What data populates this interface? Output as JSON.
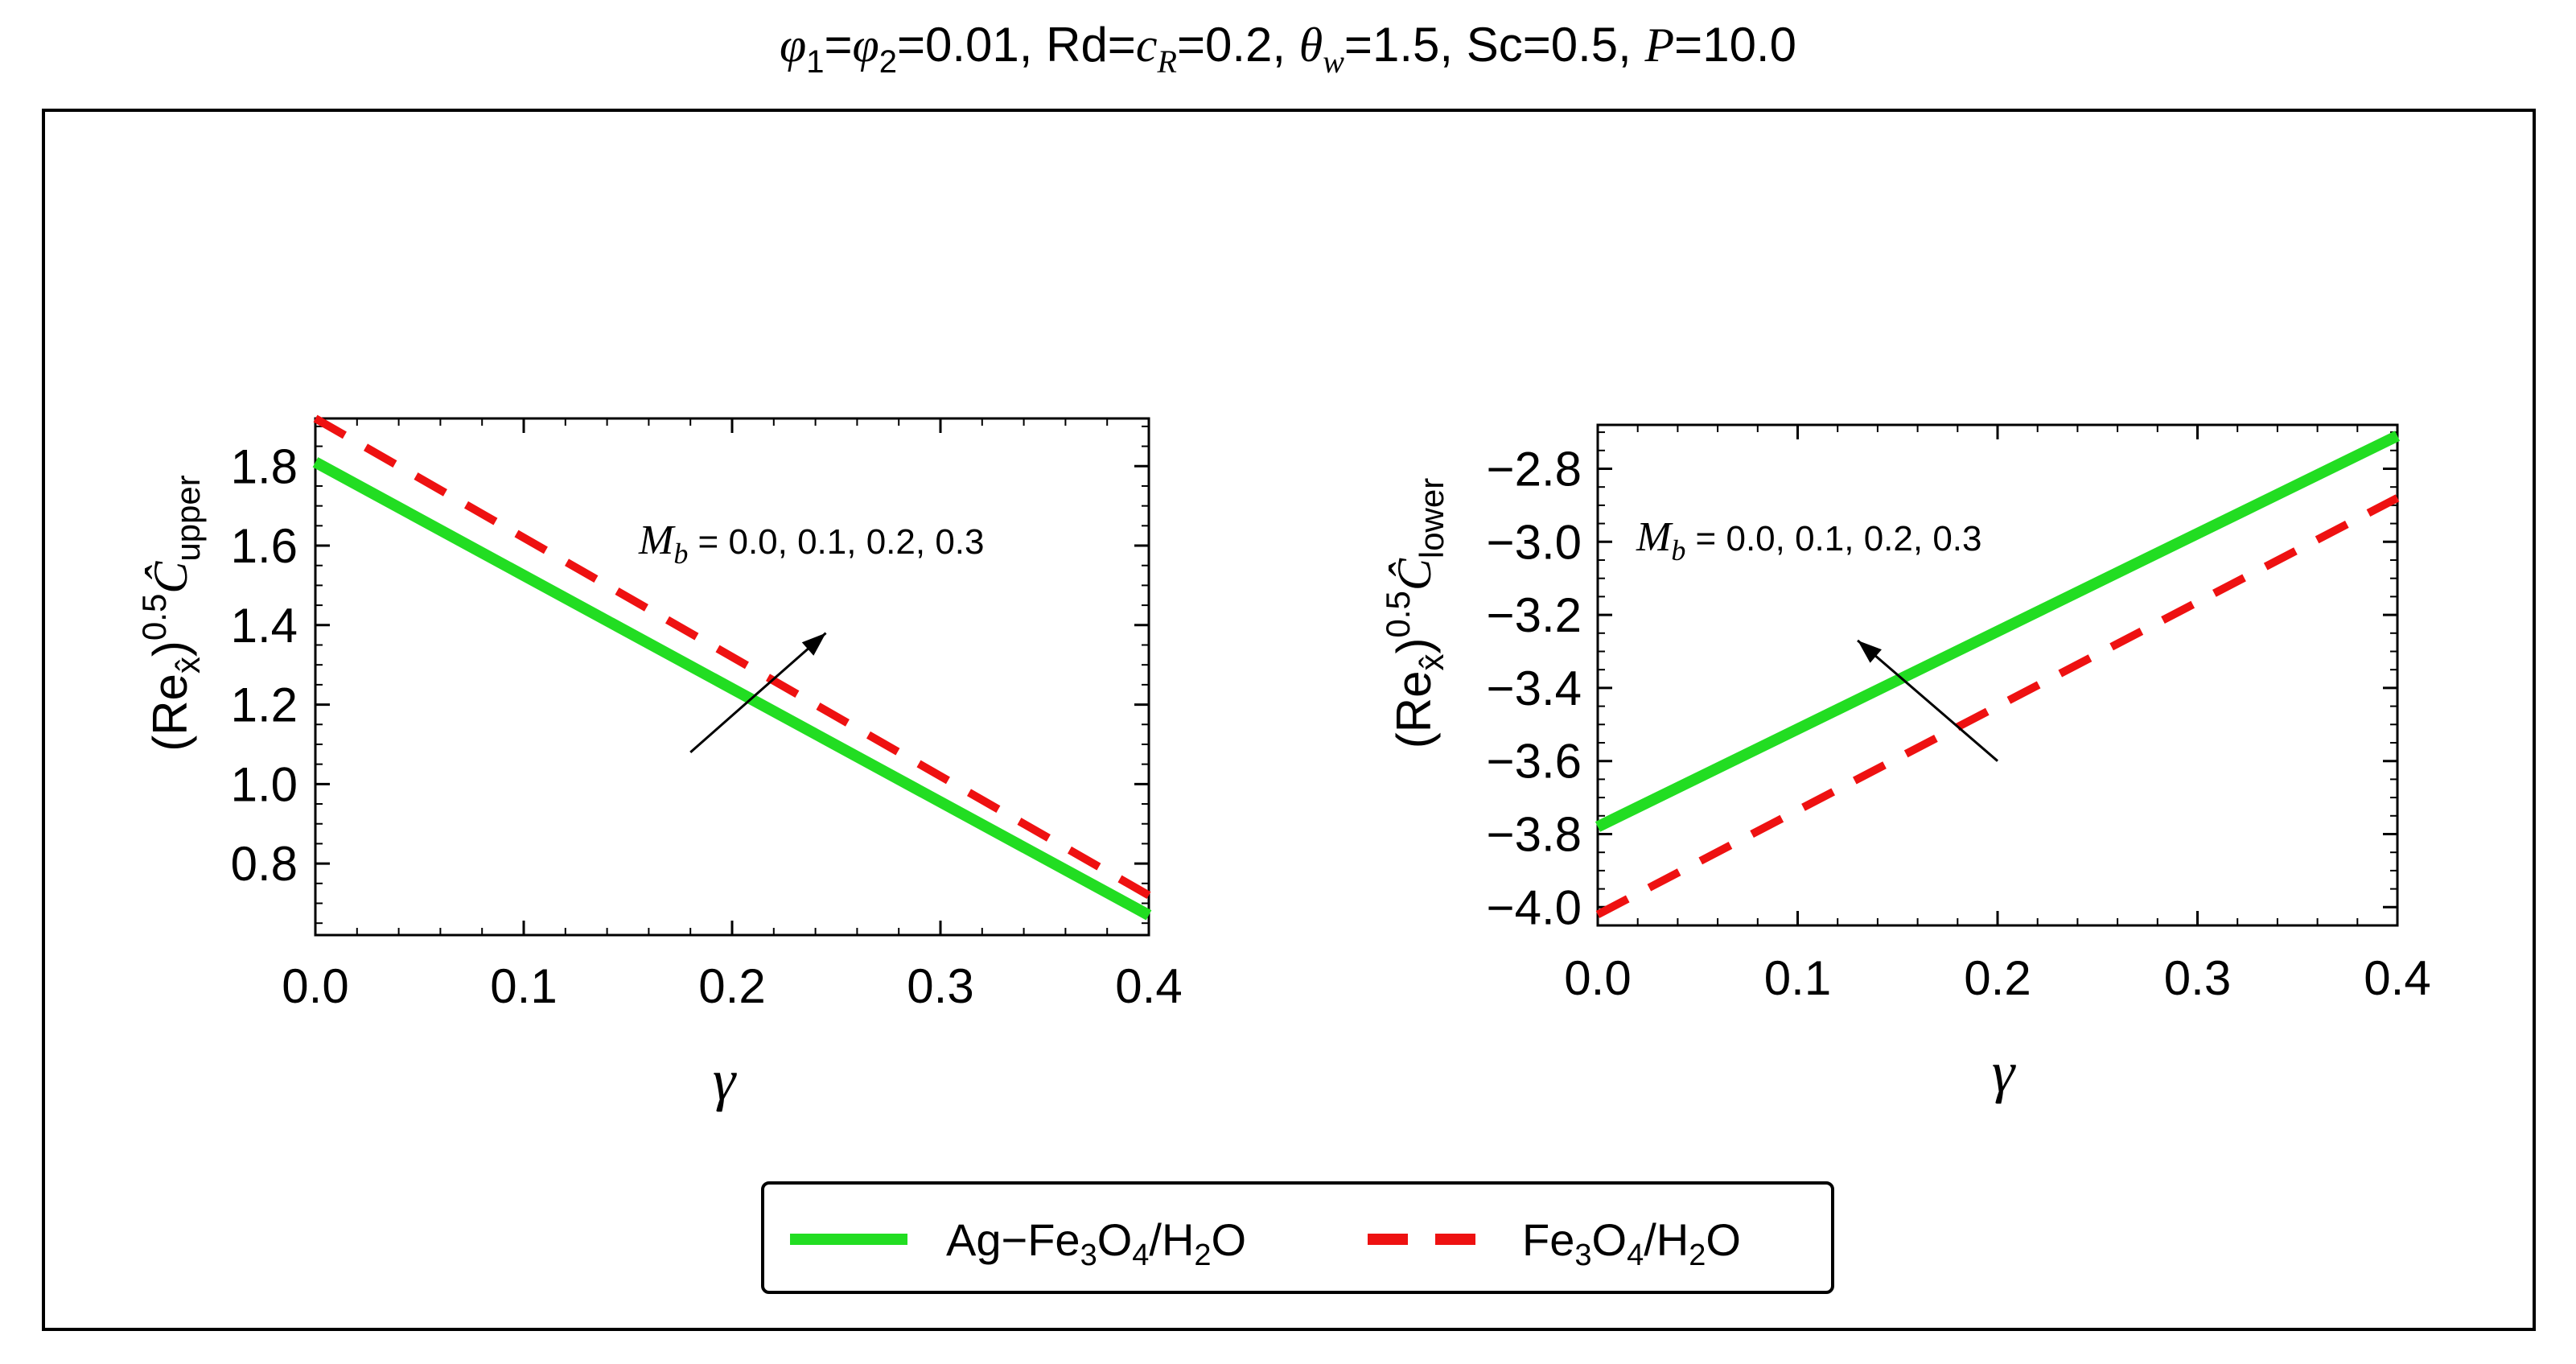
{
  "title": "φ1=φ2=0.01, Rd=cR=0.2, θw=1.5, Sc=0.5, P=10.0",
  "title_parts": {
    "phi1": "φ",
    "sub1": "1",
    "eq1": "=",
    "phi2": "φ",
    "sub2": "2",
    "v1": "=0.01, Rd=",
    "cR_c": "c",
    "cR_R": "R",
    "v2": "=0.2, ",
    "theta": "θ",
    "theta_sub": "w",
    "v3": "=1.5, Sc=0.5, ",
    "P": "P",
    "v4": "=10.0"
  },
  "colors": {
    "ag_series": "#22dd22",
    "fe_series": "#ee1111",
    "frame": "#000000"
  },
  "legend": {
    "items": [
      {
        "label_parts": [
          "Ag−Fe",
          "3",
          "O",
          "4",
          "/H",
          "2",
          "O"
        ],
        "style": "solid",
        "color": "#22dd22"
      },
      {
        "label_parts": [
          "Fe",
          "3",
          "O",
          "4",
          "/H",
          "2",
          "O"
        ],
        "style": "dashed",
        "color": "#ee1111"
      }
    ],
    "placement": "bottom-center"
  },
  "chart_data": [
    {
      "type": "line",
      "ylabel_parts": {
        "open": "(Re",
        "sub": "x̂",
        "close": ")",
        "sup": "0.5",
        "c": "Ĉ",
        "csub": "upper"
      },
      "xlabel": "γ",
      "xlim": [
        0.0,
        0.4
      ],
      "ylim": [
        0.62,
        1.92
      ],
      "xticks": [
        0.0,
        0.1,
        0.2,
        0.3,
        0.4
      ],
      "xtick_labels": [
        "0.0",
        "0.1",
        "0.2",
        "0.3",
        "0.4"
      ],
      "yticks": [
        0.8,
        1.0,
        1.2,
        1.4,
        1.6,
        1.8
      ],
      "ytick_labels": [
        "0.8",
        "1.0",
        "1.2",
        "1.4",
        "1.6",
        "1.8"
      ],
      "annotation": {
        "symbol": "M",
        "sub": "b",
        "text": " = 0.0, 0.1, 0.2, 0.3"
      },
      "arrow": {
        "from": [
          0.18,
          1.08
        ],
        "to": [
          0.245,
          1.38
        ]
      },
      "series": [
        {
          "name": "Ag−Fe3O4/H2O",
          "x": [
            0.0,
            0.4
          ],
          "y": [
            1.81,
            0.67
          ]
        },
        {
          "name": "Fe3O4/H2O",
          "x": [
            0.0,
            0.4
          ],
          "y": [
            1.92,
            0.72
          ]
        }
      ],
      "grid": false
    },
    {
      "type": "line",
      "ylabel_parts": {
        "open": "(Re",
        "sub": "x̂",
        "close": ")",
        "sup": "0.5",
        "c": "Ĉ",
        "csub": "lower"
      },
      "xlabel": "γ",
      "xlim": [
        0.0,
        0.4
      ],
      "ylim": [
        -4.05,
        -2.68
      ],
      "xticks": [
        0.0,
        0.1,
        0.2,
        0.3,
        0.4
      ],
      "xtick_labels": [
        "0.0",
        "0.1",
        "0.2",
        "0.3",
        "0.4"
      ],
      "yticks": [
        -4.0,
        -3.8,
        -3.6,
        -3.4,
        -3.2,
        -3.0,
        -2.8
      ],
      "ytick_labels": [
        "−4.0",
        "−3.8",
        "−3.6",
        "−3.4",
        "−3.2",
        "−3.0",
        "−2.8"
      ],
      "annotation": {
        "symbol": "M",
        "sub": "b",
        "text": " = 0.0, 0.1, 0.2, 0.3"
      },
      "arrow": {
        "from": [
          0.2,
          -3.6
        ],
        "to": [
          0.13,
          -3.27
        ]
      },
      "series": [
        {
          "name": "Ag−Fe3O4/H2O",
          "x": [
            0.0,
            0.4
          ],
          "y": [
            -3.78,
            -2.71
          ]
        },
        {
          "name": "Fe3O4/H2O",
          "x": [
            0.0,
            0.4
          ],
          "y": [
            -4.02,
            -2.88
          ]
        }
      ],
      "grid": false
    }
  ]
}
